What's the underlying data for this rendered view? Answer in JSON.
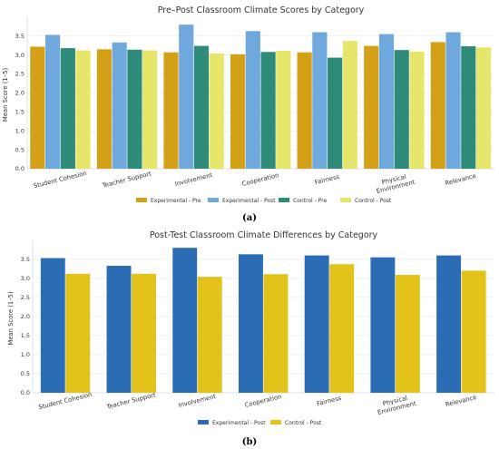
{
  "chart_data": [
    {
      "type": "bar",
      "title": "Pre–Post Classroom Climate Scores by Category",
      "panel_label": "(a)",
      "ylabel": "Mean Score (1–5)",
      "xlabel": "",
      "ylim": [
        0,
        3.9
      ],
      "yticks": [
        "0.0",
        "0.5",
        "1.0",
        "1.5",
        "2.0",
        "2.5",
        "3.0",
        "3.5"
      ],
      "categories": [
        "Student Cohesion",
        "Teacher Support",
        "Involvement",
        "Cooperation",
        "Fairness",
        "Physical Environment",
        "Relevance"
      ],
      "category_lines": [
        [
          "Student Cohesion"
        ],
        [
          "Teacher Support"
        ],
        [
          "Involvement"
        ],
        [
          "Cooperation"
        ],
        [
          "Fairness"
        ],
        [
          "Physical",
          "Environment"
        ],
        [
          "Relevance"
        ]
      ],
      "legend_position": "bottom",
      "grid": true,
      "series": [
        {
          "name": "Experimental - Pre",
          "color": "#d4a017",
          "values": [
            3.22,
            3.15,
            3.07,
            3.02,
            3.07,
            3.24,
            3.34
          ]
        },
        {
          "name": "Experimental - Post",
          "color": "#6fa8dc",
          "values": [
            3.53,
            3.33,
            3.8,
            3.63,
            3.6,
            3.55,
            3.6
          ]
        },
        {
          "name": "Control - Pre",
          "color": "#2e8b7a",
          "values": [
            3.18,
            3.14,
            3.24,
            3.08,
            2.93,
            3.13,
            3.23
          ]
        },
        {
          "name": "Control - Post",
          "color": "#e6e66a",
          "values": [
            3.12,
            3.12,
            3.04,
            3.11,
            3.37,
            3.09,
            3.2
          ]
        }
      ]
    },
    {
      "type": "bar",
      "title": "Post-Test Classroom Climate Differences by Category",
      "panel_label": "(b)",
      "ylabel": "Mean Score (1–5)",
      "xlabel": "",
      "ylim": [
        0,
        3.9
      ],
      "yticks": [
        "0.0",
        "0.5",
        "1.0",
        "1.5",
        "2.0",
        "2.5",
        "3.0",
        "3.5"
      ],
      "categories": [
        "Student Cohesion",
        "Teacher Support",
        "Involvement",
        "Cooperation",
        "Fairness",
        "Physical Environment",
        "Relevance"
      ],
      "category_lines": [
        [
          "Student Cohesion"
        ],
        [
          "Teacher Support"
        ],
        [
          "Involvement"
        ],
        [
          "Cooperation"
        ],
        [
          "Fairness"
        ],
        [
          "Physical",
          "Environment"
        ],
        [
          "Relevance"
        ]
      ],
      "legend_position": "bottom",
      "grid": true,
      "series": [
        {
          "name": "Experimental - Post",
          "color": "#2a6db5",
          "values": [
            3.53,
            3.33,
            3.8,
            3.63,
            3.6,
            3.55,
            3.6
          ]
        },
        {
          "name": "Control - Post",
          "color": "#e3c21a",
          "values": [
            3.12,
            3.12,
            3.04,
            3.11,
            3.37,
            3.09,
            3.2
          ]
        }
      ]
    }
  ]
}
